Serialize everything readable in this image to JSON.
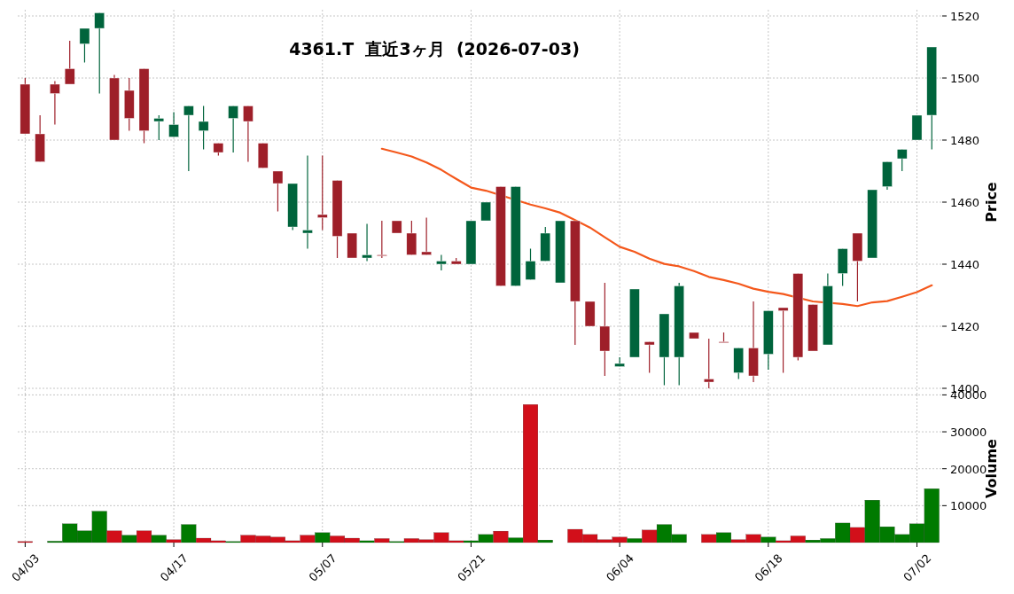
{
  "chart_data": [
    {
      "type": "candlestick",
      "title": "4361.T  直近3ヶ月  (2026-07-03)",
      "ylabel": "Price",
      "categories": [
        null,
        null,
        null,
        null,
        null,
        null,
        null,
        null,
        null,
        null,
        null,
        null,
        null,
        null,
        null,
        null,
        null,
        null,
        null,
        null,
        null,
        null,
        null,
        null,
        null,
        null,
        null,
        null,
        null,
        null,
        null,
        null,
        null,
        null,
        null,
        null,
        null,
        null,
        null,
        null,
        null,
        null,
        null,
        null,
        null,
        null,
        null,
        null,
        null,
        null,
        null,
        null,
        null,
        null,
        null,
        null,
        null,
        null,
        null,
        null,
        null,
        null
      ],
      "series": [
        {
          "type": "line",
          "color": "#f4581c",
          "values": [
            null,
            null,
            null,
            null,
            null,
            null,
            null,
            null,
            null,
            null,
            null,
            null,
            null,
            null,
            null,
            null,
            null,
            null,
            null,
            null,
            null,
            null,
            null,
            null,
            1477.2,
            1476,
            1474.7,
            1472.8,
            1470.4,
            1467.5,
            1464.7,
            1463.7,
            null,
            null,
            1459.2,
            1458,
            1456.6,
            1454.2,
            1451.8,
            1448.7,
            1445.6,
            1444,
            1441.8,
            1440.1,
            1439.3,
            1437.8,
            1435.9,
            1434.9,
            1433.7,
            1432.1,
            1431.1,
            1430.4,
            null,
            1428,
            null,
            1427.2,
            1426.5,
            1427.7,
            1428.1,
            1429.5,
            1431,
            1433.2
          ]
        },
        {
          "ohlc": [
            [
              1498,
              1500,
              1482,
              1482
            ],
            [
              1482,
              1488,
              1473,
              1473
            ],
            [
              1498,
              1499,
              1485,
              1495
            ],
            [
              1503,
              1512,
              1498,
              1498
            ],
            [
              1511,
              1516,
              1505,
              1516
            ],
            [
              1516,
              1521,
              1495,
              1521
            ],
            [
              1500,
              1501,
              1480,
              1480
            ],
            [
              1496,
              1500,
              1483,
              1487
            ],
            [
              1503,
              1503,
              1479,
              1483
            ],
            [
              1486,
              1488,
              1480,
              1487
            ],
            [
              1481,
              1489,
              1481,
              1485
            ],
            [
              1488,
              1491,
              1470,
              1491
            ],
            [
              1483,
              1491,
              1477,
              1486
            ],
            [
              1479,
              1479,
              1475,
              1476
            ],
            [
              1487,
              1491,
              1476,
              1491
            ],
            [
              1491,
              1491,
              1473,
              1486
            ],
            [
              1479,
              1479,
              1471,
              1471
            ],
            [
              1470,
              1470,
              1457,
              1466
            ],
            [
              1452,
              1466,
              1451,
              1466
            ],
            [
              1450,
              1475,
              1445,
              1451
            ],
            [
              1456,
              1475,
              1451,
              1455
            ],
            [
              1467,
              1467,
              1442,
              1449
            ],
            [
              1450,
              1450,
              1442,
              1442
            ],
            [
              1442,
              1453,
              1441,
              1443
            ],
            [
              1443,
              1454,
              1442,
              1443
            ],
            [
              1454,
              1454,
              1450,
              1450
            ],
            [
              1450,
              1454,
              1443,
              1443
            ],
            [
              1444,
              1455,
              1443,
              1443
            ],
            [
              1440,
              1443,
              1438,
              1441
            ],
            [
              1441,
              1442,
              1440,
              1440
            ],
            [
              1440,
              1454,
              1440,
              1454
            ],
            [
              1454,
              1460,
              1454,
              1460
            ],
            [
              1465,
              1465,
              1433,
              1433
            ],
            [
              1433,
              1465,
              1433,
              1465
            ],
            [
              1435,
              1445,
              1435,
              1441
            ],
            [
              1441,
              1452,
              1441,
              1450
            ],
            [
              1434,
              1454,
              1434,
              1454
            ],
            [
              1454,
              1454,
              1414,
              1428
            ],
            [
              1428,
              1428,
              1420,
              1420
            ],
            [
              1420,
              1434,
              1404,
              1412
            ],
            [
              1407,
              1410,
              1407,
              1408
            ],
            [
              1410,
              1432,
              1410,
              1432
            ],
            [
              1415,
              1415,
              1405,
              1414
            ],
            [
              1410,
              1424,
              1401,
              1424
            ],
            [
              1410,
              1434,
              1401,
              1433
            ],
            [
              1418,
              1418,
              1416,
              1416
            ],
            [
              1403,
              1416,
              1400,
              1402
            ],
            [
              1415,
              1418,
              1415,
              1415
            ],
            [
              1405,
              1413,
              1403,
              1413
            ],
            [
              1413,
              1428,
              1402,
              1404
            ],
            [
              1411,
              1425,
              1406,
              1425
            ],
            [
              1426,
              1426,
              1405,
              1425
            ],
            [
              1437,
              1437,
              1409,
              1410
            ],
            [
              1427,
              1427,
              1412,
              1412
            ],
            [
              1414,
              1437,
              1414,
              1433
            ],
            [
              1437,
              1445,
              1433,
              1445
            ],
            [
              1450,
              1450,
              1428,
              1441
            ],
            [
              1442,
              1464,
              1442,
              1464
            ],
            [
              1465,
              1473,
              1464,
              1473
            ],
            [
              1474,
              1477,
              1470,
              1477
            ],
            [
              1480,
              1488,
              1480,
              1488
            ],
            [
              1488,
              1510,
              1477,
              1510
            ]
          ],
          "colors": [
            "#9e1f29",
            "#9e1f29",
            "#9e1f29",
            "#9e1f29",
            "#00643c",
            "#00643c",
            "#9e1f29",
            "#9e1f29",
            "#9e1f29",
            "#00643c",
            "#00643c",
            "#00643c",
            "#00643c",
            "#9e1f29",
            "#00643c",
            "#9e1f29",
            "#9e1f29",
            "#9e1f29",
            "#00643c",
            "#00643c",
            "#9e1f29",
            "#9e1f29",
            "#9e1f29",
            "#00643c",
            "#9e1f29",
            "#9e1f29",
            "#9e1f29",
            "#9e1f29",
            "#00643c",
            "#9e1f29",
            "#00643c",
            "#00643c",
            "#9e1f29",
            "#00643c",
            "#00643c",
            "#00643c",
            "#00643c",
            "#9e1f29",
            "#9e1f29",
            "#9e1f29",
            "#00643c",
            "#00643c",
            "#9e1f29",
            "#00643c",
            "#00643c",
            "#9e1f29",
            "#9e1f29",
            "#9e1f29",
            "#00643c",
            "#9e1f29",
            "#00643c",
            "#9e1f29",
            "#9e1f29",
            "#9e1f29",
            "#00643c",
            "#00643c",
            "#9e1f29",
            "#00643c",
            "#00643c",
            "#00643c",
            "#00643c",
            "#00643c"
          ]
        }
      ],
      "ylim": [
        1398,
        1522
      ],
      "yticks": [
        1400,
        1420,
        1440,
        1460,
        1480,
        1500,
        1520
      ],
      "grid": true,
      "tick_labels": "y"
    },
    {
      "type": "bar",
      "ylabel": "Volume",
      "categories": [
        "04/03",
        null,
        null,
        null,
        null,
        null,
        null,
        null,
        null,
        null,
        "04/17",
        null,
        null,
        null,
        null,
        null,
        null,
        null,
        null,
        null,
        "05/07",
        null,
        null,
        null,
        null,
        null,
        null,
        null,
        null,
        null,
        "05/21",
        null,
        null,
        null,
        null,
        null,
        null,
        null,
        null,
        null,
        "06/04",
        null,
        null,
        null,
        null,
        null,
        null,
        null,
        null,
        null,
        "06/18",
        null,
        null,
        null,
        null,
        null,
        null,
        null,
        null,
        null,
        "07/02",
        null
      ],
      "values": [
        300,
        null,
        400,
        5100,
        3200,
        8500,
        3200,
        2000,
        3200,
        2000,
        800,
        4900,
        1200,
        500,
        300,
        2000,
        1800,
        1500,
        500,
        2000,
        2700,
        1800,
        1200,
        500,
        1100,
        300,
        1100,
        800,
        2700,
        500,
        500,
        2200,
        3100,
        1300,
        37400,
        700,
        null,
        3600,
        2200,
        800,
        1500,
        1100,
        3400,
        4900,
        2200,
        null,
        2200,
        2700,
        800,
        2200,
        1500,
        500,
        1800,
        700,
        1100,
        5300,
        4100,
        11500,
        4300,
        2200,
        5100,
        14600
      ],
      "colors": [
        "#d20f1a",
        null,
        "#007a00",
        "#007a00",
        "#007a00",
        "#007a00",
        "#d20f1a",
        "#007a00",
        "#d20f1a",
        "#007a00",
        "#d20f1a",
        "#007a00",
        "#d20f1a",
        "#d20f1a",
        "#007a00",
        "#d20f1a",
        "#d20f1a",
        "#d20f1a",
        "#d20f1a",
        "#d20f1a",
        "#007a00",
        "#d20f1a",
        "#d20f1a",
        "#007a00",
        "#d20f1a",
        "#007a00",
        "#d20f1a",
        "#d20f1a",
        "#d20f1a",
        "#d20f1a",
        "#007a00",
        "#007a00",
        "#d20f1a",
        "#007a00",
        "#d20f1a",
        "#007a00",
        null,
        "#d20f1a",
        "#d20f1a",
        "#d20f1a",
        "#d20f1a",
        "#007a00",
        "#d20f1a",
        "#007a00",
        "#007a00",
        null,
        "#d20f1a",
        "#007a00",
        "#d20f1a",
        "#d20f1a",
        "#007a00",
        "#d20f1a",
        "#d20f1a",
        "#007a00",
        "#007a00",
        "#007a00",
        "#d20f1a",
        "#007a00",
        "#007a00",
        "#007a00",
        "#007a00",
        "#007a00"
      ],
      "ylim": [
        0,
        40100
      ],
      "yticks": [
        10000,
        20000,
        30000,
        40000
      ],
      "grid": true
    }
  ]
}
